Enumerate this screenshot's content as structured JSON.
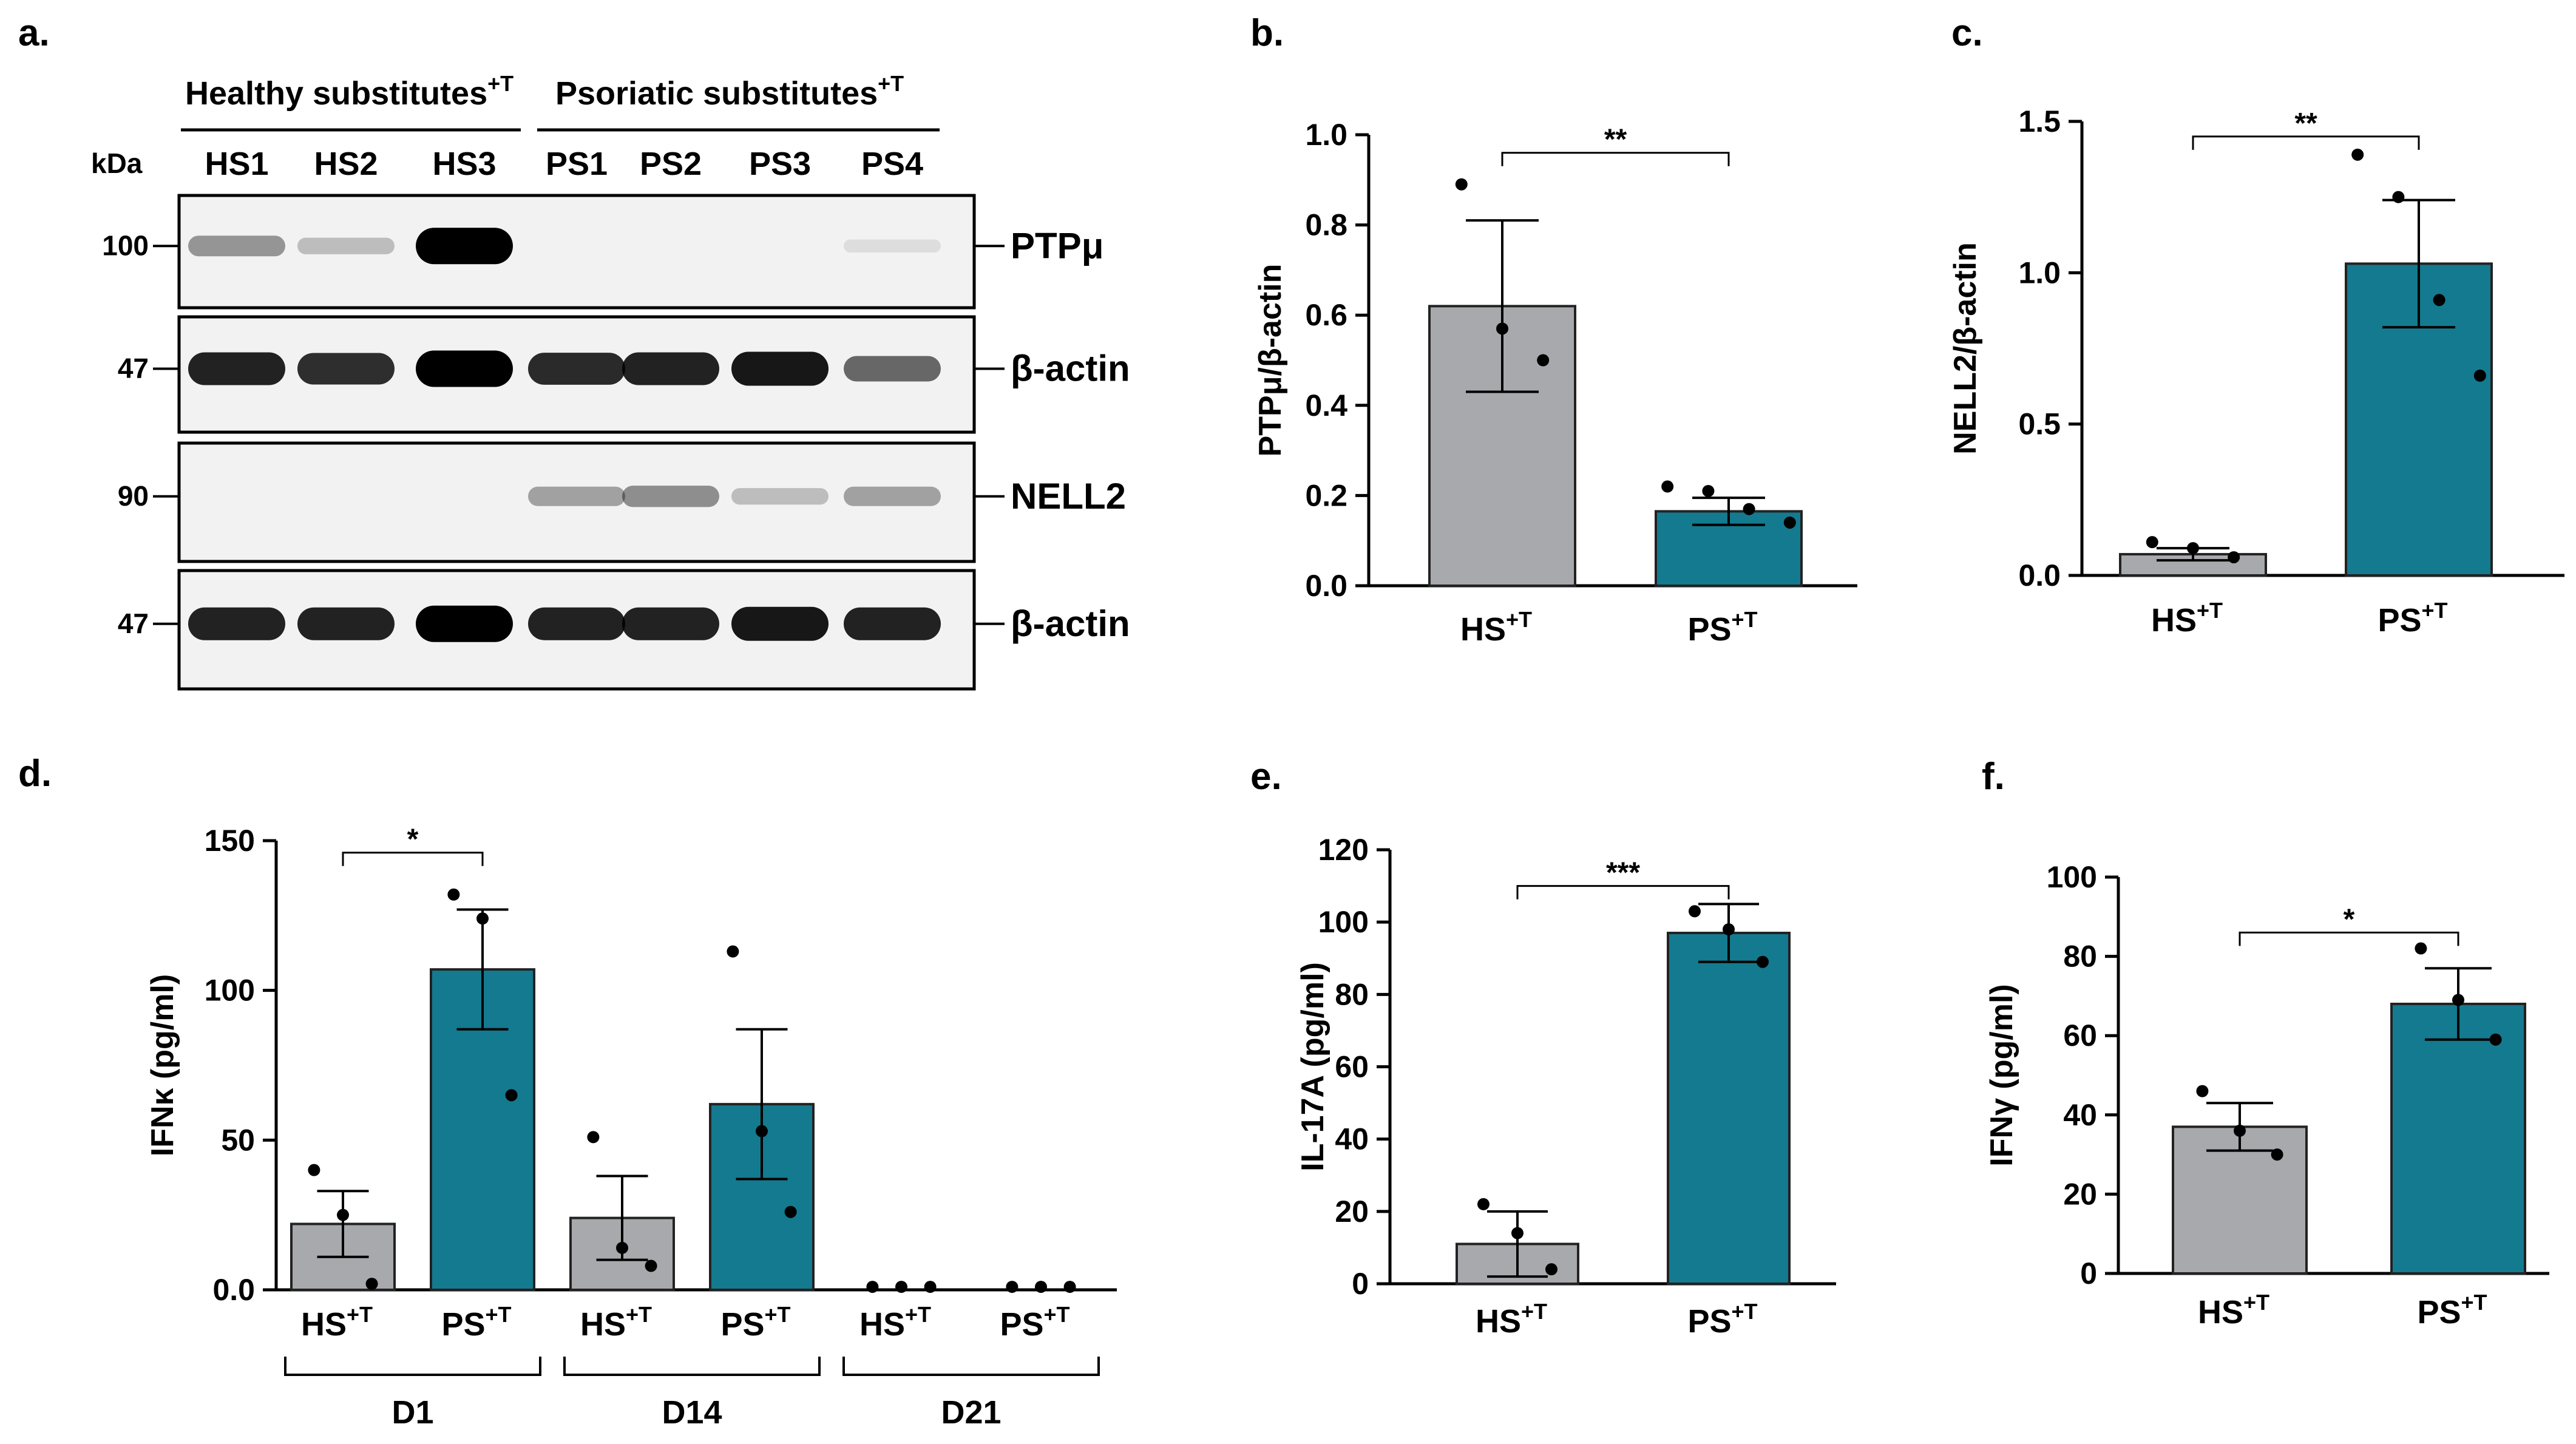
{
  "colors": {
    "hs_bar": "#A7A9AC",
    "ps_bar": "#137A8F",
    "edge": "#222222",
    "point": "#000000",
    "blot_bg": "#f2f2f2"
  },
  "blot": {
    "panel_label": "a.",
    "group_healthy": "Healthy  substitutes",
    "group_psoriatic": "Psoriatic  substitutes",
    "group_sup": "+T",
    "kda_label": "kDa",
    "lanes": [
      "HS1",
      "HS2",
      "HS3",
      "PS1",
      "PS2",
      "PS3",
      "PS4"
    ],
    "rows": [
      {
        "kda": "100",
        "protein": "PTPμ",
        "intensity": [
          0.35,
          0.18,
          1.0,
          0,
          0,
          0,
          0.04
        ]
      },
      {
        "kda": "47",
        "protein": "β-actin",
        "intensity": [
          0.85,
          0.8,
          1.0,
          0.82,
          0.85,
          0.9,
          0.55
        ]
      },
      {
        "kda": "90",
        "protein": "NELL2",
        "intensity": [
          0,
          0,
          0,
          0.3,
          0.38,
          0.18,
          0.3
        ]
      },
      {
        "kda": "47",
        "protein": "β-actin",
        "intensity": [
          0.85,
          0.85,
          1.0,
          0.85,
          0.85,
          0.9,
          0.85
        ]
      }
    ]
  },
  "chart_data": [
    {
      "panel": "b.",
      "type": "bar",
      "ylabel": "PTPμ/β-actin",
      "ylim": [
        0,
        1.0
      ],
      "yticks": [
        "0.0",
        "0.2",
        "0.4",
        "0.6",
        "0.8",
        "1.0"
      ],
      "tickvals": [
        0,
        0.2,
        0.4,
        0.6,
        0.8,
        1.0
      ],
      "group_labels": [],
      "bars": [
        {
          "label": "HS",
          "sup": "+T",
          "value": 0.62,
          "err": 0.19,
          "points": [
            0.89,
            0.57,
            0.5
          ],
          "color": "hs"
        },
        {
          "label": "PS",
          "sup": "+T",
          "value": 0.165,
          "err": 0.03,
          "points": [
            0.22,
            0.21,
            0.17,
            0.14
          ],
          "color": "ps"
        }
      ],
      "sig": [
        {
          "from": 0,
          "to": 1,
          "y": 0.96,
          "text": "**"
        }
      ]
    },
    {
      "panel": "c.",
      "type": "bar",
      "ylabel": "NELL2/β-actin",
      "ylim": [
        0,
        1.5
      ],
      "yticks": [
        "0.0",
        "0.5",
        "1.0",
        "1.5"
      ],
      "tickvals": [
        0,
        0.5,
        1.0,
        1.5
      ],
      "group_labels": [],
      "bars": [
        {
          "label": "HS",
          "sup": "+T",
          "value": 0.07,
          "err": 0.02,
          "points": [
            0.11,
            0.09,
            0.06
          ],
          "color": "hs"
        },
        {
          "label": "PS",
          "sup": "+T",
          "value": 1.03,
          "err": 0.21,
          "points": [
            1.39,
            1.25,
            0.91,
            0.66
          ],
          "color": "ps"
        }
      ],
      "sig": [
        {
          "from": 0,
          "to": 1,
          "y": 1.45,
          "text": "**"
        }
      ]
    },
    {
      "panel": "d.",
      "type": "bar",
      "ylabel": "IFNκ (pg/ml)",
      "ylim": [
        0,
        150
      ],
      "yticks": [
        "0.0",
        "50",
        "100",
        "150"
      ],
      "tickvals": [
        0,
        50,
        100,
        150
      ],
      "group_labels": [
        "D1",
        "D14",
        "D21"
      ],
      "bars": [
        {
          "label": "HS",
          "sup": "+T",
          "value": 22,
          "err": 11,
          "points": [
            40,
            25,
            2
          ],
          "color": "hs"
        },
        {
          "label": "PS",
          "sup": "+T",
          "value": 107,
          "err": 20,
          "points": [
            132,
            124,
            65
          ],
          "color": "ps"
        },
        {
          "label": "HS",
          "sup": "+T",
          "value": 24,
          "err": 14,
          "points": [
            51,
            14,
            8
          ],
          "color": "hs"
        },
        {
          "label": "PS",
          "sup": "+T",
          "value": 62,
          "err": 25,
          "points": [
            113,
            53,
            26
          ],
          "color": "ps"
        },
        {
          "label": "HS",
          "sup": "+T",
          "value": 0,
          "err": 0,
          "points": [
            1,
            1,
            1
          ],
          "color": "hs"
        },
        {
          "label": "PS",
          "sup": "+T",
          "value": 0,
          "err": 0,
          "points": [
            1,
            1,
            1
          ],
          "color": "ps"
        }
      ],
      "sig": [
        {
          "from": 0,
          "to": 1,
          "y": 146,
          "text": "*"
        }
      ]
    },
    {
      "panel": "e.",
      "type": "bar",
      "ylabel": "IL-17A (pg/ml)",
      "ylim": [
        0,
        120
      ],
      "yticks": [
        "0",
        "20",
        "40",
        "60",
        "80",
        "100",
        "120"
      ],
      "tickvals": [
        0,
        20,
        40,
        60,
        80,
        100,
        120
      ],
      "group_labels": [],
      "bars": [
        {
          "label": "HS",
          "sup": "+T",
          "value": 11,
          "err": 9,
          "points": [
            22,
            14,
            4
          ],
          "color": "hs"
        },
        {
          "label": "PS",
          "sup": "+T",
          "value": 97,
          "err": 8,
          "points": [
            103,
            98,
            89
          ],
          "color": "ps"
        }
      ],
      "sig": [
        {
          "from": 0,
          "to": 1,
          "y": 110,
          "text": "***"
        }
      ]
    },
    {
      "panel": "f.",
      "type": "bar",
      "ylabel": "IFNγ (pg/ml)",
      "ylim": [
        0,
        100
      ],
      "yticks": [
        "0",
        "20",
        "40",
        "60",
        "80",
        "100"
      ],
      "tickvals": [
        0,
        20,
        40,
        60,
        80,
        100
      ],
      "group_labels": [],
      "bars": [
        {
          "label": "HS",
          "sup": "+T",
          "value": 37,
          "err": 6,
          "points": [
            46,
            36,
            30
          ],
          "color": "hs"
        },
        {
          "label": "PS",
          "sup": "+T",
          "value": 68,
          "err": 9,
          "points": [
            82,
            69,
            59
          ],
          "color": "ps"
        }
      ],
      "sig": [
        {
          "from": 0,
          "to": 1,
          "y": 86,
          "text": "*"
        }
      ]
    }
  ]
}
